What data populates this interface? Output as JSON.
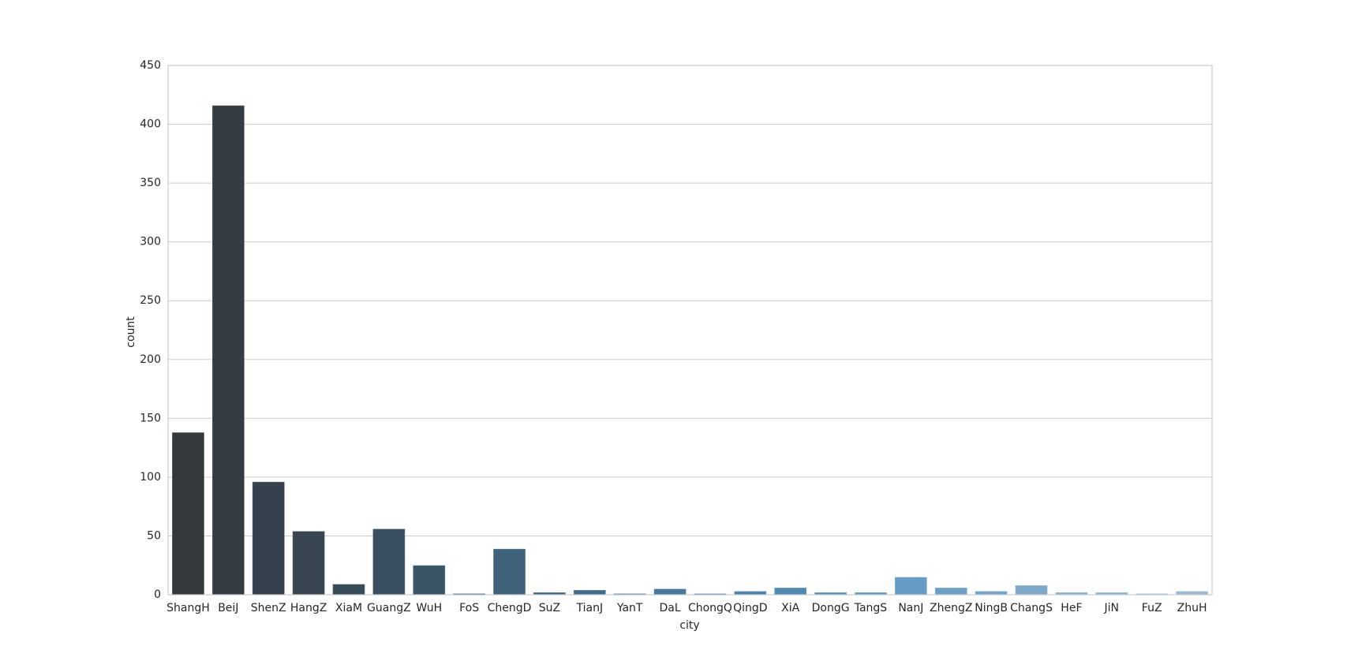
{
  "chart_data": {
    "type": "bar",
    "categories": [
      "ShangH",
      "BeiJ",
      "ShenZ",
      "HangZ",
      "XiaM",
      "GuangZ",
      "WuH",
      "FoS",
      "ChengD",
      "SuZ",
      "TianJ",
      "YanT",
      "DaL",
      "ChongQ",
      "QingD",
      "XiA",
      "DongG",
      "TangS",
      "NanJ",
      "ZhengZ",
      "NingB",
      "ChangS",
      "HeF",
      "JiN",
      "FuZ",
      "ZhuH"
    ],
    "values": [
      138,
      416,
      96,
      54,
      9,
      56,
      25,
      1,
      39,
      2,
      4,
      1,
      5,
      1,
      3,
      6,
      2,
      2,
      15,
      6,
      3,
      8,
      2,
      2,
      1,
      3
    ],
    "colors": [
      "#34393b",
      "#343d44",
      "#36414b",
      "#374651",
      "#384b58",
      "#3a5060",
      "#3b5567",
      "#3d5b70",
      "#3f6179",
      "#406682",
      "#426c8a",
      "#447292",
      "#47789b",
      "#4a7ea3",
      "#4e84ab",
      "#5289b2",
      "#578fb9",
      "#5d95bf",
      "#659bc5",
      "#6d9fc7",
      "#76a4c8",
      "#7ea9ca",
      "#86adcc",
      "#8db1cd",
      "#94b5cf",
      "#9bb9d1"
    ],
    "x_label": "city",
    "y_label": "count",
    "ylim": [
      0,
      450
    ],
    "yticks": [
      0,
      50,
      100,
      150,
      200,
      250,
      300,
      350,
      400,
      450
    ],
    "grid": true
  }
}
